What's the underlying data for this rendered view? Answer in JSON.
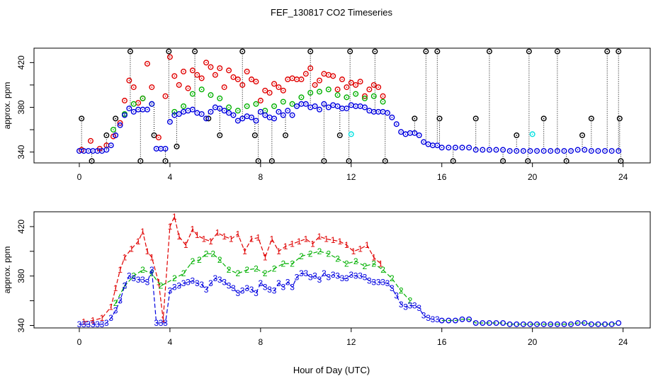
{
  "page_title": "FEF_130817  CO2 Timeseries",
  "shared_xlabel": "Hour of Day (UTC)",
  "chart_data": [
    {
      "type": "scatter",
      "panel": "top",
      "title": "FEF_130817  CO2 Timeseries",
      "xlabel": "",
      "ylabel": "approx. ppm",
      "xlim": [
        -2,
        25.2
      ],
      "ylim": [
        330.3,
        432.9
      ],
      "xticks": [
        0,
        4,
        8,
        12,
        16,
        20,
        24
      ],
      "yticks": [
        340,
        360,
        380,
        400,
        420
      ],
      "ytick_labels": [
        "340",
        "",
        "380",
        "",
        "420"
      ],
      "grid": false,
      "legend": "none",
      "markers": "circle with center dot",
      "series": [
        {
          "name": "black",
          "color": "#000000",
          "x": [
            0.1,
            0.55,
            1.2,
            1.6,
            2.25,
            2.7,
            3.3,
            3.8,
            3.95,
            4.3,
            5.1,
            5.7,
            6.2,
            7.2,
            7.75,
            7.9,
            8.5,
            9.1,
            10.2,
            10.8,
            11.5,
            11.9,
            11.95,
            13.05,
            13.5,
            14.8,
            15.3,
            15.8,
            15.9,
            16.5,
            17.5,
            18.1,
            18.7,
            19.3,
            19.8,
            19.85,
            20.5,
            21.1,
            21.5,
            22.2,
            22.6,
            23.3,
            23.8,
            23.85,
            23.9
          ],
          "y": [
            370,
            332,
            355,
            370,
            430,
            332,
            355,
            332,
            430,
            345,
            430,
            370,
            355,
            430,
            355,
            332,
            332,
            355,
            430,
            332,
            355,
            332,
            430,
            430,
            332,
            370,
            430,
            430,
            370,
            332,
            370,
            430,
            332,
            355,
            332,
            430,
            370,
            430,
            332,
            355,
            370,
            430,
            430,
            370,
            332
          ]
        },
        {
          "name": "red",
          "color": "#e00000",
          "x": [
            0.1,
            0.5,
            0.9,
            1.2,
            1.5,
            1.8,
            2.0,
            2.2,
            2.4,
            2.6,
            2.8,
            3.0,
            3.2,
            3.5,
            3.8,
            4.0,
            4.2,
            4.4,
            4.6,
            4.8,
            5.0,
            5.2,
            5.4,
            5.6,
            5.8,
            6.0,
            6.2,
            6.4,
            6.6,
            6.8,
            7.0,
            7.2,
            7.4,
            7.6,
            7.8,
            8.0,
            8.2,
            8.4,
            8.6,
            8.8,
            9.0,
            9.2,
            9.4,
            9.6,
            9.8,
            10.0,
            10.2,
            10.4,
            10.6,
            10.8,
            11.0,
            11.2,
            11.4,
            11.6,
            11.8,
            12.0,
            12.2,
            12.4,
            12.6,
            12.8,
            13.0,
            13.2,
            13.4
          ],
          "y": [
            342,
            350,
            343,
            346,
            354,
            366,
            386,
            404,
            398,
            384,
            388,
            419,
            398,
            353,
            390,
            425,
            408,
            400,
            412,
            397,
            413,
            409,
            406,
            420,
            416,
            409,
            415,
            398,
            413,
            407,
            405,
            400,
            412,
            405,
            403,
            386,
            395,
            393,
            401,
            398,
            395,
            405,
            406,
            405,
            405,
            410,
            415,
            400,
            404,
            410,
            409,
            408,
            396,
            405,
            398,
            402,
            400,
            403,
            390,
            396,
            400,
            398,
            390
          ]
        },
        {
          "name": "green",
          "color": "#00b000",
          "x": [
            1.5,
            2.0,
            2.4,
            2.8,
            3.2,
            4.2,
            4.6,
            5.0,
            5.4,
            5.8,
            6.2,
            6.6,
            7.0,
            7.4,
            7.8,
            8.2,
            8.6,
            9.0,
            9.4,
            9.8,
            10.2,
            10.6,
            11.0,
            11.4,
            11.8,
            12.2,
            12.6,
            13.0,
            13.4
          ],
          "y": [
            360,
            374,
            383,
            388,
            383,
            376,
            381,
            392,
            396,
            391,
            388,
            380,
            377,
            381,
            383,
            377,
            381,
            385,
            383,
            389,
            393,
            394,
            396,
            391,
            389,
            392,
            388,
            390,
            385
          ]
        },
        {
          "name": "blue",
          "color": "#0000e0",
          "x": [
            0.0,
            0.2,
            0.4,
            0.6,
            0.8,
            1.0,
            1.2,
            1.4,
            1.6,
            1.8,
            2.0,
            2.2,
            2.4,
            2.6,
            2.8,
            3.0,
            3.2,
            3.4,
            3.6,
            3.8,
            4.0,
            4.2,
            4.4,
            4.6,
            4.8,
            5.0,
            5.2,
            5.4,
            5.6,
            5.8,
            6.0,
            6.2,
            6.4,
            6.6,
            6.8,
            7.0,
            7.2,
            7.4,
            7.6,
            7.8,
            8.0,
            8.2,
            8.4,
            8.6,
            8.8,
            9.0,
            9.2,
            9.4,
            9.6,
            9.8,
            10.0,
            10.2,
            10.4,
            10.6,
            10.8,
            11.0,
            11.2,
            11.4,
            11.6,
            11.8,
            12.0,
            12.2,
            12.4,
            12.6,
            12.8,
            13.0,
            13.2,
            13.4,
            13.6,
            13.8,
            14.0,
            14.2,
            14.4,
            14.6,
            14.8,
            15.0,
            15.2,
            15.4,
            15.6,
            15.8,
            16.0,
            16.3,
            16.6,
            16.9,
            17.2,
            17.5,
            17.8,
            18.1,
            18.4,
            18.7,
            19.0,
            19.3,
            19.6,
            19.9,
            20.2,
            20.5,
            20.8,
            21.1,
            21.4,
            21.7,
            22.0,
            22.3,
            22.6,
            22.9,
            23.2,
            23.5,
            23.8
          ],
          "y": [
            341,
            341,
            341,
            341,
            341,
            341,
            342,
            346,
            355,
            364,
            373,
            379,
            376,
            378,
            378,
            378,
            383,
            343,
            343,
            343,
            367,
            373,
            374,
            376,
            377,
            378,
            375,
            374,
            370,
            376,
            380,
            379,
            377,
            375,
            373,
            368,
            370,
            372,
            371,
            368,
            376,
            373,
            371,
            370,
            376,
            373,
            377,
            373,
            381,
            383,
            383,
            380,
            381,
            378,
            383,
            380,
            382,
            381,
            379,
            379,
            382,
            381,
            381,
            380,
            377,
            376,
            376,
            376,
            375,
            371,
            365,
            358,
            356,
            357,
            357,
            355,
            349,
            347,
            346,
            346,
            344,
            344,
            344,
            344,
            344,
            342,
            342,
            342,
            342,
            342,
            341,
            341,
            341,
            341,
            341,
            341,
            341,
            341,
            341,
            341,
            342,
            342,
            341,
            341,
            341,
            341,
            341
          ]
        },
        {
          "name": "cyan",
          "color": "#00e0e0",
          "x": [
            12.0,
            20.0
          ],
          "y": [
            356,
            356
          ]
        }
      ]
    },
    {
      "type": "line",
      "panel": "bottom",
      "title": "",
      "xlabel": "Hour of Day (UTC)",
      "ylabel": "approx. ppm",
      "xlim": [
        -2,
        25.2
      ],
      "ylim": [
        338,
        432
      ],
      "xticks": [
        0,
        4,
        8,
        12,
        16,
        20,
        24
      ],
      "yticks": [
        340,
        360,
        380,
        400,
        420
      ],
      "ytick_labels": [
        "340",
        "",
        "380",
        "",
        "420"
      ],
      "grid": false,
      "legend": "none",
      "series": [
        {
          "name": "1",
          "label_char": "1",
          "color": "#e00000",
          "x": [
            0.2,
            0.6,
            1.0,
            1.4,
            1.6,
            1.8,
            2.0,
            2.3,
            2.6,
            2.8,
            3.0,
            3.2,
            3.5,
            3.7,
            4.0,
            4.2,
            4.4,
            4.7,
            5.0,
            5.2,
            5.5,
            5.8,
            6.1,
            6.4,
            6.7,
            7.0,
            7.3,
            7.6,
            7.9,
            8.2,
            8.5,
            8.8,
            9.1,
            9.4,
            9.7,
            10.0,
            10.3,
            10.6,
            10.9,
            11.2,
            11.5,
            11.8,
            12.1,
            12.4,
            12.7,
            13.0,
            13.3
          ],
          "y": [
            343,
            344,
            346,
            355,
            370,
            385,
            395,
            402,
            408,
            416,
            400,
            395,
            375,
            345,
            420,
            428,
            412,
            405,
            418,
            413,
            410,
            408,
            415,
            412,
            410,
            414,
            400,
            410,
            411,
            395,
            410,
            400,
            404,
            406,
            408,
            410,
            406,
            412,
            410,
            409,
            408,
            405,
            400,
            402,
            405,
            395,
            390
          ]
        },
        {
          "name": "2",
          "label_char": "2",
          "color": "#00b000",
          "x": [
            1.6,
            2.0,
            2.4,
            2.8,
            3.2,
            3.6,
            4.2,
            4.6,
            5.0,
            5.3,
            5.6,
            5.9,
            6.2,
            6.6,
            7.0,
            7.4,
            7.8,
            8.2,
            8.6,
            9.0,
            9.4,
            9.8,
            10.2,
            10.6,
            11.0,
            11.4,
            11.8,
            12.2,
            12.6,
            13.0,
            13.4,
            13.8,
            14.2,
            14.6
          ],
          "y": [
            358,
            372,
            380,
            385,
            382,
            372,
            378,
            382,
            392,
            393,
            398,
            398,
            393,
            385,
            382,
            385,
            386,
            382,
            386,
            390,
            390,
            396,
            398,
            400,
            398,
            394,
            390,
            392,
            388,
            390,
            385,
            378,
            368,
            360
          ]
        },
        {
          "name": "3",
          "label_char": "3",
          "color": "#0000e0",
          "x": [
            0.0,
            0.2,
            0.4,
            0.6,
            0.8,
            1.0,
            1.2,
            1.4,
            1.6,
            1.8,
            2.0,
            2.2,
            2.4,
            2.6,
            2.8,
            3.0,
            3.2,
            3.4,
            3.6,
            3.8,
            4.0,
            4.2,
            4.4,
            4.6,
            4.8,
            5.0,
            5.2,
            5.4,
            5.6,
            5.8,
            6.0,
            6.2,
            6.4,
            6.6,
            6.8,
            7.0,
            7.2,
            7.4,
            7.6,
            7.8,
            8.0,
            8.2,
            8.4,
            8.6,
            8.8,
            9.0,
            9.2,
            9.4,
            9.6,
            9.8,
            10.0,
            10.2,
            10.4,
            10.6,
            10.8,
            11.0,
            11.2,
            11.4,
            11.6,
            11.8,
            12.0,
            12.2,
            12.4,
            12.6,
            12.8,
            13.0,
            13.2,
            13.4,
            13.6,
            13.8,
            14.0,
            14.2,
            14.4,
            14.6,
            14.8,
            15.0,
            15.2,
            15.4,
            15.6,
            15.8
          ],
          "y": [
            341,
            341,
            341,
            341,
            341,
            341,
            342,
            346,
            352,
            360,
            372,
            380,
            378,
            377,
            377,
            375,
            385,
            342,
            342,
            342,
            368,
            371,
            372,
            374,
            375,
            376,
            374,
            373,
            369,
            374,
            378,
            377,
            375,
            372,
            370,
            366,
            368,
            370,
            369,
            366,
            374,
            371,
            369,
            368,
            374,
            371,
            375,
            371,
            379,
            382,
            382,
            379,
            380,
            377,
            382,
            379,
            381,
            380,
            378,
            378,
            381,
            380,
            380,
            379,
            376,
            375,
            375,
            375,
            374,
            370,
            364,
            357,
            355,
            356,
            356,
            354,
            348,
            346,
            345,
            345
          ]
        },
        {
          "name": "flat",
          "label_char": "o",
          "color": "#0000e0",
          "line_color": "#00b000",
          "x": [
            16.0,
            16.3,
            16.6,
            16.9,
            17.2,
            17.5,
            17.8,
            18.1,
            18.4,
            18.7,
            19.0,
            19.3,
            19.6,
            19.9,
            20.2,
            20.5,
            20.8,
            21.1,
            21.4,
            21.7,
            22.0,
            22.3,
            22.6,
            22.9,
            23.2,
            23.5,
            23.8
          ],
          "y": [
            344,
            344,
            344,
            345,
            345,
            342,
            342,
            342,
            342,
            342,
            341,
            341,
            341,
            341,
            341,
            341,
            341,
            341,
            341,
            341,
            342,
            342,
            341,
            341,
            341,
            341,
            342
          ]
        }
      ]
    }
  ]
}
